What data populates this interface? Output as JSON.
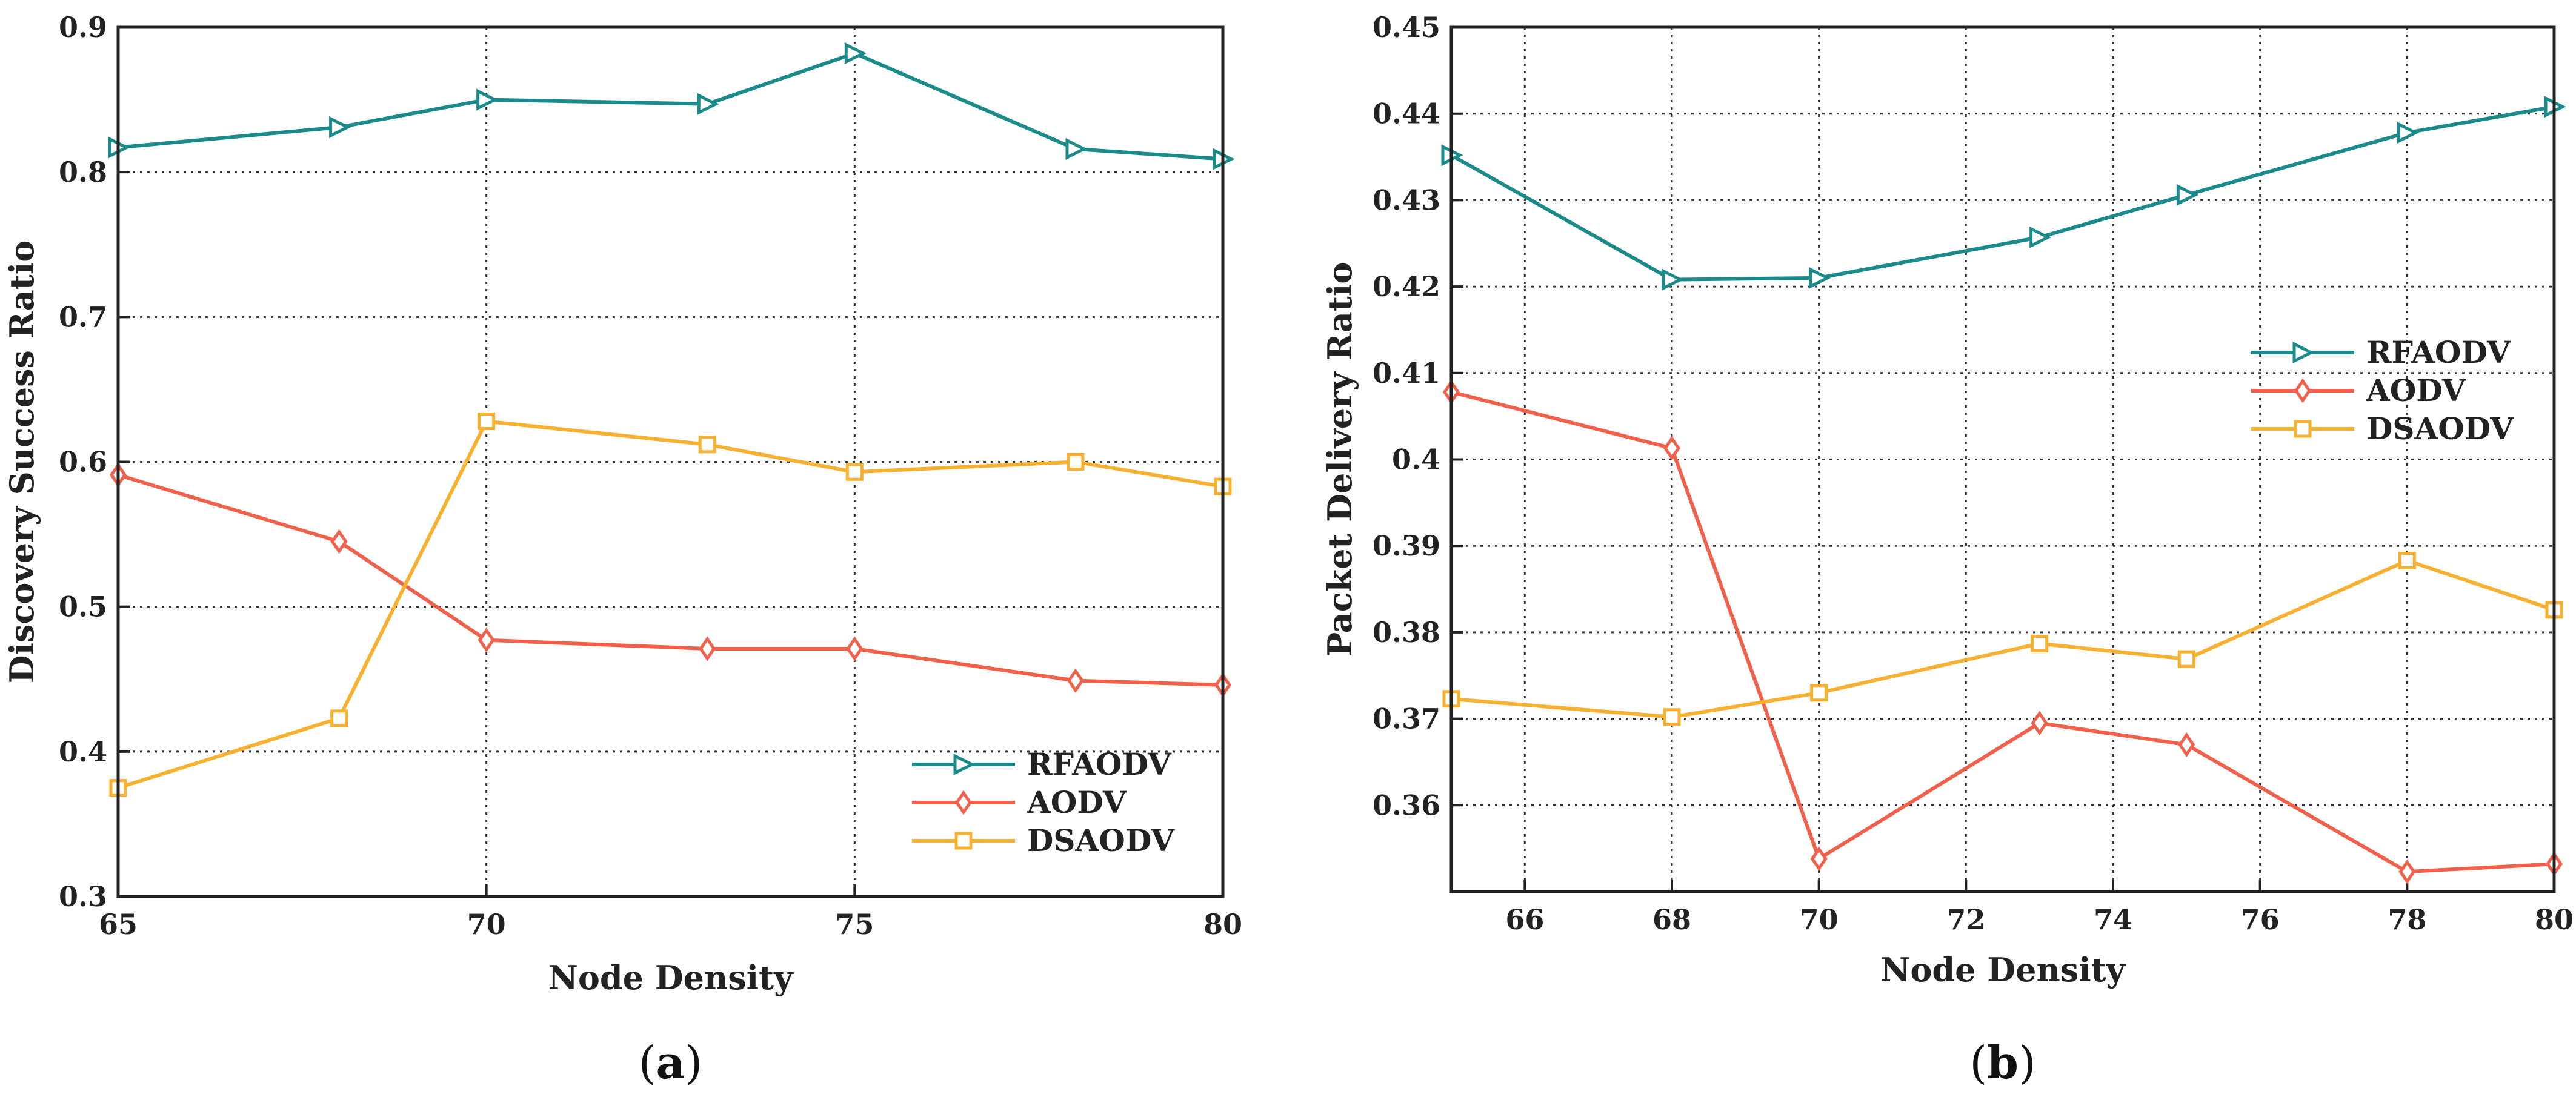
{
  "chart_data": [
    {
      "type": "line",
      "caption": {
        "open": "(",
        "letter": "a",
        "close": ")"
      },
      "xlabel": "Node Density",
      "ylabel": "Discovery Success Ratio",
      "xlim": [
        65,
        80
      ],
      "ylim": [
        0.3,
        0.9
      ],
      "xticks": [
        "65",
        "70",
        "75",
        "80"
      ],
      "yticks": [
        "0.3",
        "0.4",
        "0.5",
        "0.6",
        "0.7",
        "0.8",
        "0.9"
      ],
      "grid": true,
      "legend_position": "bottom-right",
      "x": [
        65,
        68,
        70,
        73,
        75,
        78,
        80
      ],
      "series": [
        {
          "name": "RFAODV",
          "color": "#1a8a8a",
          "marker": "triangle",
          "values": [
            0.817,
            0.831,
            0.85,
            0.847,
            0.882,
            0.816,
            0.809
          ]
        },
        {
          "name": "AODV",
          "color": "#f0604a",
          "marker": "diamond",
          "values": [
            0.591,
            0.545,
            0.477,
            0.471,
            0.471,
            0.449,
            0.446
          ]
        },
        {
          "name": "DSAODV",
          "color": "#f8b030",
          "marker": "square",
          "values": [
            0.375,
            0.423,
            0.628,
            0.612,
            0.593,
            0.6,
            0.583
          ]
        }
      ]
    },
    {
      "type": "line",
      "caption": {
        "open": "(",
        "letter": "b",
        "close": ")"
      },
      "xlabel": "Node Density",
      "ylabel": "Packet Delivery Ratio",
      "xlim": [
        65,
        80
      ],
      "ylim": [
        0.35,
        0.45
      ],
      "xticks": [
        "66",
        "68",
        "70",
        "72",
        "74",
        "76",
        "78",
        "80"
      ],
      "yticks": [
        "0.36",
        "0.37",
        "0.38",
        "0.39",
        "0.4",
        "0.41",
        "0.42",
        "0.43",
        "0.44",
        "0.45"
      ],
      "grid": true,
      "legend_position": "center-right",
      "x": [
        65,
        68,
        70,
        73,
        75,
        78,
        80
      ],
      "series": [
        {
          "name": "RFAODV",
          "color": "#1a8a8a",
          "marker": "triangle",
          "values": [
            0.4352,
            0.4208,
            0.421,
            0.4257,
            0.4306,
            0.4378,
            0.4408
          ]
        },
        {
          "name": "AODV",
          "color": "#f0604a",
          "marker": "diamond",
          "values": [
            0.4078,
            0.4013,
            0.3538,
            0.3695,
            0.367,
            0.3523,
            0.3532
          ]
        },
        {
          "name": "DSAODV",
          "color": "#f8b030",
          "marker": "square",
          "values": [
            0.3723,
            0.3702,
            0.373,
            0.3787,
            0.3769,
            0.3883,
            0.3826
          ]
        }
      ]
    }
  ]
}
